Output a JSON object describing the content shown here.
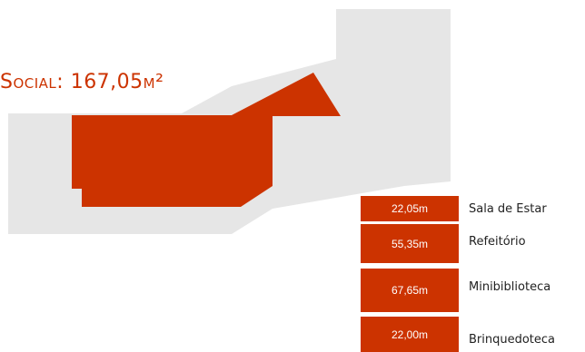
{
  "title": "Social: 167,05m²",
  "colors": {
    "accent": "#cc3300",
    "plan_gray": "#e6e6e6",
    "text": "#222222"
  },
  "rooms": [
    {
      "area": "22,05m",
      "name": "Sala de Estar"
    },
    {
      "area": "55,35m",
      "name": "Refeitório"
    },
    {
      "area": "67,65m",
      "name": "Minibiblioteca"
    },
    {
      "area": "22,00m",
      "name": "Brinquedoteca"
    }
  ]
}
